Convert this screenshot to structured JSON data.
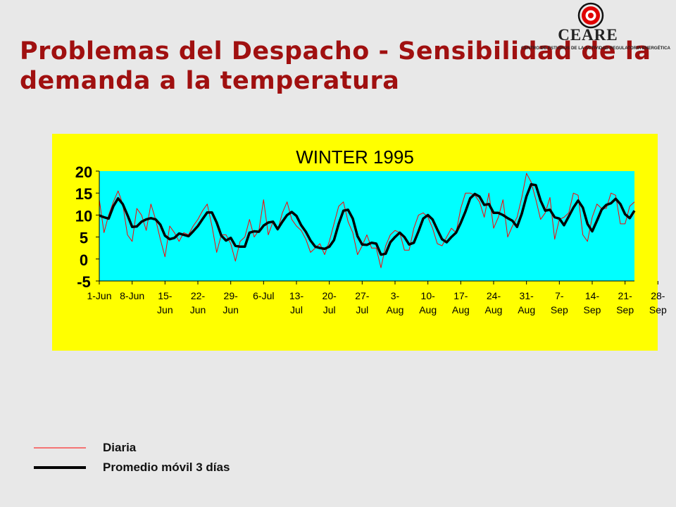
{
  "slide": {
    "title": "Problemas del Despacho  - Sensibilidad de la demanda a la temperatura"
  },
  "logo": {
    "wordmark": "CEARE",
    "tagline": "CENTRO DE ESTUDIOS DE LA ACTIVIDAD REGULATORIA ENERGÉTICA",
    "accent_color": "#e00000"
  },
  "legend": {
    "items": [
      {
        "label": "Diaria",
        "color": "#ff0000"
      },
      {
        "label": "Promedio móvil 3 días",
        "color": "#000000"
      }
    ]
  },
  "chart_data": {
    "type": "line",
    "title": "WINTER 1995",
    "xlabel": "",
    "ylabel": "",
    "ylim": [
      -5,
      20
    ],
    "yticks": [
      20,
      15,
      10,
      5,
      0,
      -5
    ],
    "xticks": [
      {
        "day": 0,
        "line1": "1-Jun",
        "line2": ""
      },
      {
        "day": 7,
        "line1": "8-Jun",
        "line2": ""
      },
      {
        "day": 14,
        "line1": "15-",
        "line2": "Jun"
      },
      {
        "day": 21,
        "line1": "22-",
        "line2": "Jun"
      },
      {
        "day": 28,
        "line1": "29-",
        "line2": "Jun"
      },
      {
        "day": 35,
        "line1": "6-Jul",
        "line2": ""
      },
      {
        "day": 42,
        "line1": "13-",
        "line2": "Jul"
      },
      {
        "day": 49,
        "line1": "20-",
        "line2": "Jul"
      },
      {
        "day": 56,
        "line1": "27-",
        "line2": "Jul"
      },
      {
        "day": 63,
        "line1": "3-",
        "line2": "Aug"
      },
      {
        "day": 70,
        "line1": "10-",
        "line2": "Aug"
      },
      {
        "day": 77,
        "line1": "17-",
        "line2": "Aug"
      },
      {
        "day": 84,
        "line1": "24-",
        "line2": "Aug"
      },
      {
        "day": 91,
        "line1": "31-",
        "line2": "Aug"
      },
      {
        "day": 98,
        "line1": "7-",
        "line2": "Sep"
      },
      {
        "day": 105,
        "line1": "14-",
        "line2": "Sep"
      },
      {
        "day": 112,
        "line1": "21-",
        "line2": "Sep"
      },
      {
        "day": 119,
        "line1": "28-",
        "line2": "Sep"
      }
    ],
    "grid": false,
    "plot_background": "#00ffff",
    "series": [
      {
        "name": "Diaria",
        "color": "#ff0000",
        "values": [
          13.5,
          6.0,
          10.0,
          13.0,
          15.5,
          12.5,
          5.5,
          4.0,
          11.5,
          10.0,
          6.5,
          12.5,
          9.0,
          4.5,
          0.5,
          7.5,
          6.0,
          4.0,
          6.0,
          5.5,
          7.5,
          9.0,
          11.0,
          12.5,
          7.5,
          1.5,
          5.5,
          5.5,
          3.5,
          -0.5,
          4.0,
          5.0,
          9.0,
          5.0,
          6.5,
          13.5,
          5.5,
          8.5,
          6.5,
          10.5,
          13.0,
          9.0,
          7.5,
          6.5,
          4.5,
          1.5,
          2.5,
          3.5,
          1.0,
          4.0,
          8.0,
          12.0,
          13.0,
          8.5,
          6.0,
          1.0,
          3.0,
          5.5,
          2.5,
          2.5,
          -2.0,
          3.0,
          5.5,
          6.5,
          6.0,
          2.0,
          2.0,
          7.0,
          10.0,
          10.5,
          9.5,
          7.0,
          3.5,
          3.0,
          5.0,
          7.0,
          6.0,
          11.5,
          15.0,
          15.0,
          14.5,
          13.0,
          9.5,
          15.0,
          7.0,
          9.5,
          13.5,
          5.0,
          7.5,
          9.5,
          14.0,
          19.5,
          17.5,
          13.5,
          9.0,
          10.5,
          14.0,
          4.5,
          9.0,
          9.5,
          10.5,
          15.0,
          14.5,
          5.5,
          4.0,
          9.5,
          12.5,
          11.5,
          11.5,
          15.0,
          14.5,
          8.0,
          8.0,
          12.0,
          13.0
        ]
      },
      {
        "name": "Promedio móvil 3 días",
        "color": "#000000",
        "values": [
          9.9,
          9.5,
          9.2,
          12.0,
          13.8,
          12.5,
          10.0,
          7.3,
          7.4,
          8.5,
          9.0,
          9.3,
          9.0,
          7.8,
          5.3,
          4.5,
          4.8,
          5.8,
          5.5,
          5.2,
          6.3,
          7.5,
          9.1,
          10.6,
          10.6,
          8.3,
          5.3,
          4.2,
          4.8,
          3.0,
          2.8,
          2.8,
          6.0,
          6.3,
          6.2,
          7.6,
          8.3,
          8.5,
          6.8,
          8.5,
          10.0,
          10.7,
          9.8,
          7.7,
          6.2,
          4.2,
          2.8,
          2.5,
          2.3,
          2.8,
          4.3,
          8.0,
          11.0,
          11.2,
          9.2,
          5.2,
          3.3,
          3.2,
          3.7,
          3.5,
          1.0,
          1.2,
          3.8,
          5.0,
          6.0,
          5.0,
          3.3,
          3.7,
          6.3,
          9.2,
          10.0,
          9.0,
          6.7,
          4.5,
          3.8,
          5.0,
          6.0,
          8.2,
          10.8,
          13.8,
          14.8,
          14.2,
          12.3,
          12.5,
          10.5,
          10.5,
          10.0,
          9.3,
          8.7,
          7.3,
          10.3,
          14.3,
          17.0,
          16.8,
          13.3,
          11.0,
          11.2,
          9.5,
          9.2,
          7.7,
          9.7,
          11.7,
          13.3,
          11.7,
          8.0,
          6.3,
          8.7,
          11.2,
          12.3,
          12.7,
          13.7,
          12.5,
          10.2,
          9.3,
          11.0
        ]
      }
    ]
  }
}
